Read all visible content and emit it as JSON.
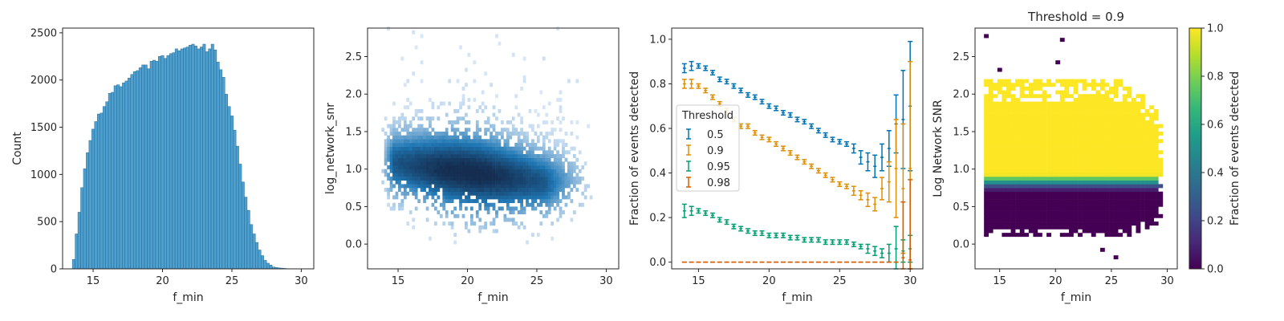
{
  "chart_data": [
    {
      "type": "bar",
      "subtype": "histogram",
      "xlabel": "f_min",
      "ylabel": "Count",
      "xlim": [
        12.8,
        30.9
      ],
      "ylim": [
        0,
        2550
      ],
      "xticks": [
        15,
        20,
        25,
        30
      ],
      "yticks": [
        0,
        500,
        1000,
        1500,
        2000,
        2500
      ],
      "bin_start": 13.5,
      "bin_width": 0.2,
      "values": [
        100,
        370,
        600,
        860,
        1060,
        1230,
        1360,
        1480,
        1560,
        1640,
        1650,
        1720,
        1770,
        1860,
        1870,
        1940,
        1950,
        1930,
        1970,
        1990,
        2020,
        2060,
        2090,
        2100,
        2130,
        2160,
        2160,
        2120,
        2200,
        2210,
        2200,
        2250,
        2260,
        2230,
        2260,
        2280,
        2290,
        2330,
        2310,
        2330,
        2340,
        2350,
        2370,
        2380,
        2360,
        2330,
        2350,
        2380,
        2300,
        2330,
        2380,
        2320,
        2190,
        2110,
        2030,
        1850,
        1720,
        1620,
        1470,
        1300,
        1110,
        920,
        760,
        620,
        470,
        370,
        280,
        200,
        140,
        90,
        60,
        40,
        20,
        15,
        10,
        8,
        5,
        3,
        2,
        1
      ],
      "color": "#4c9fcf"
    },
    {
      "type": "heatmap",
      "subtype": "2d-histogram",
      "xlabel": "f_min",
      "ylabel": "log_network_snr",
      "xlim": [
        12.8,
        30.9
      ],
      "ylim": [
        -0.33,
        2.88
      ],
      "xticks": [
        15,
        20,
        25,
        30
      ],
      "yticks": [
        0.0,
        0.5,
        1.0,
        1.5,
        2.0,
        2.5
      ],
      "x_center_start": 13.5,
      "x_center_end": 25.8,
      "x_center_mid": 20.0,
      "y_center_start": 1.08,
      "y_center_end": 0.8,
      "color": "#1f77b4"
    },
    {
      "type": "line",
      "subtype": "errorbar",
      "xlabel": "f_min",
      "ylabel": "Fraction of events detected",
      "xlim": [
        13.1,
        30.9
      ],
      "ylim": [
        -0.03,
        1.05
      ],
      "xticks": [
        15,
        20,
        25,
        30
      ],
      "yticks": [
        0.0,
        0.2,
        0.4,
        0.6,
        0.8,
        1.0
      ],
      "x": [
        14.0,
        14.5,
        15.0,
        15.5,
        16.0,
        16.5,
        17.0,
        17.5,
        18.0,
        18.5,
        19.0,
        19.5,
        20.0,
        20.5,
        21.0,
        21.5,
        22.0,
        22.5,
        23.0,
        23.5,
        24.0,
        24.5,
        25.0,
        25.5,
        26.0,
        26.5,
        27.0,
        27.5,
        28.0,
        28.5,
        29.0,
        29.5,
        30.0
      ],
      "legend_title": "Threshold",
      "legend_position": "center-left",
      "series": [
        {
          "name": "0.5",
          "color": "#0173b2",
          "values": [
            0.87,
            0.88,
            0.88,
            0.87,
            0.85,
            0.82,
            0.81,
            0.79,
            0.77,
            0.75,
            0.74,
            0.72,
            0.7,
            0.69,
            0.67,
            0.66,
            0.64,
            0.63,
            0.61,
            0.59,
            0.57,
            0.55,
            0.54,
            0.53,
            0.51,
            0.47,
            0.45,
            0.43,
            0.47,
            0.51,
            0.62,
            0.64,
            0.7
          ],
          "errors": [
            0.02,
            0.02,
            0.01,
            0.01,
            0.01,
            0.01,
            0.01,
            0.01,
            0.01,
            0.01,
            0.01,
            0.01,
            0.01,
            0.01,
            0.01,
            0.01,
            0.01,
            0.01,
            0.01,
            0.01,
            0.01,
            0.01,
            0.01,
            0.01,
            0.02,
            0.03,
            0.04,
            0.05,
            0.06,
            0.08,
            0.13,
            0.22,
            0.29
          ]
        },
        {
          "name": "0.9",
          "color": "#de8f05",
          "values": [
            0.8,
            0.8,
            0.79,
            0.77,
            0.74,
            0.71,
            0.68,
            0.64,
            0.61,
            0.61,
            0.58,
            0.56,
            0.55,
            0.53,
            0.51,
            0.49,
            0.47,
            0.45,
            0.43,
            0.41,
            0.39,
            0.37,
            0.35,
            0.34,
            0.32,
            0.3,
            0.28,
            0.26,
            0.33,
            0.36,
            0.42,
            0.33,
            0.42
          ],
          "errors": [
            0.02,
            0.02,
            0.01,
            0.01,
            0.01,
            0.01,
            0.01,
            0.01,
            0.01,
            0.01,
            0.01,
            0.01,
            0.01,
            0.01,
            0.01,
            0.01,
            0.01,
            0.01,
            0.01,
            0.01,
            0.01,
            0.01,
            0.01,
            0.01,
            0.02,
            0.02,
            0.03,
            0.03,
            0.05,
            0.09,
            0.22,
            0.29,
            0.48
          ]
        },
        {
          "name": "0.95",
          "color": "#029e73",
          "values": [
            0.23,
            0.23,
            0.23,
            0.22,
            0.21,
            0.19,
            0.18,
            0.16,
            0.15,
            0.14,
            0.13,
            0.13,
            0.12,
            0.12,
            0.12,
            0.11,
            0.11,
            0.1,
            0.1,
            0.1,
            0.09,
            0.09,
            0.09,
            0.09,
            0.08,
            0.07,
            0.06,
            0.05,
            0.04,
            0.04,
            0.06,
            0.05,
            0.06
          ],
          "errors": [
            0.03,
            0.02,
            0.01,
            0.01,
            0.01,
            0.01,
            0.01,
            0.01,
            0.01,
            0.01,
            0.01,
            0.01,
            0.01,
            0.01,
            0.01,
            0.01,
            0.01,
            0.01,
            0.01,
            0.01,
            0.01,
            0.01,
            0.01,
            0.01,
            0.01,
            0.01,
            0.02,
            0.02,
            0.02,
            0.04,
            0.1,
            0.05,
            0.06
          ]
        },
        {
          "name": "0.98",
          "color": "#d55e00",
          "values": [
            0,
            0,
            0,
            0,
            0,
            0,
            0,
            0,
            0,
            0,
            0,
            0,
            0,
            0,
            0,
            0,
            0,
            0,
            0,
            0,
            0,
            0,
            0,
            0,
            0,
            0,
            0,
            0,
            0,
            0,
            0,
            0.02,
            0.01
          ],
          "errors": [
            0,
            0,
            0,
            0,
            0,
            0,
            0,
            0,
            0,
            0,
            0,
            0,
            0,
            0,
            0,
            0,
            0,
            0,
            0,
            0,
            0,
            0,
            0,
            0,
            0,
            0,
            0,
            0,
            0,
            0,
            0,
            0.25,
            0.36
          ]
        }
      ]
    },
    {
      "type": "heatmap",
      "title": "Threshold = 0.9",
      "xlabel": "f_min",
      "ylabel": "Log Network SNR",
      "xlim": [
        12.8,
        30.9
      ],
      "ylim": [
        -0.33,
        2.88
      ],
      "xticks": [
        15,
        20,
        25,
        30
      ],
      "yticks": [
        0.0,
        0.5,
        1.0,
        1.5,
        2.0,
        2.5
      ],
      "colormap": "viridis",
      "colorbar": {
        "label": "Fraction of events detected",
        "ticks": [
          "0.0",
          "0.2",
          "0.4",
          "0.6",
          "0.8",
          "1.0"
        ]
      },
      "note_rows": [
        {
          "y": 0.9,
          "value": 0.98
        },
        {
          "y": 0.85,
          "value": 0.74
        },
        {
          "y": 0.8,
          "value": 0.5
        },
        {
          "y": 0.75,
          "value": 0.24
        },
        {
          "y": 0.7,
          "value": 0.08
        }
      ]
    }
  ]
}
